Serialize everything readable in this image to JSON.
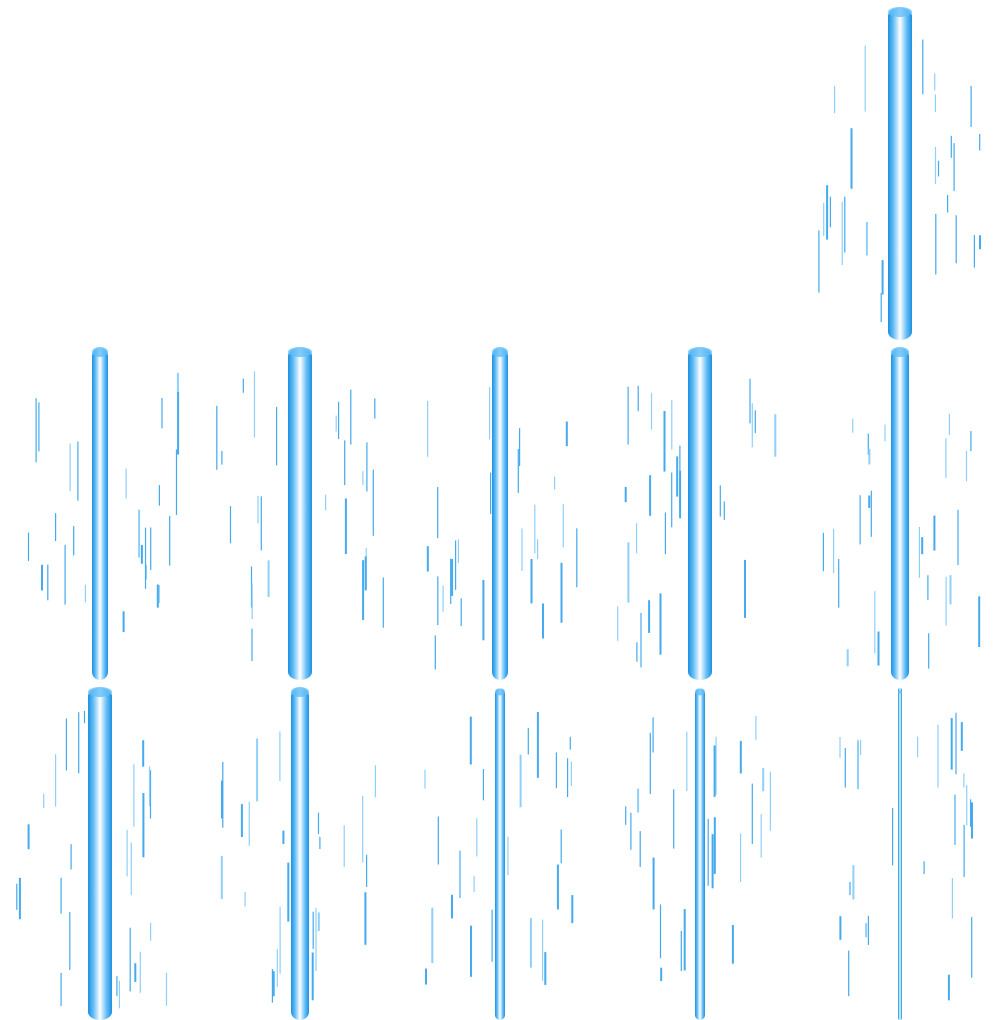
{
  "sprite_sheet": {
    "columns": 5,
    "rows": 3,
    "frames": [
      {
        "index": 0,
        "empty": true
      },
      {
        "index": 1,
        "empty": true
      },
      {
        "index": 2,
        "empty": true
      },
      {
        "index": 3,
        "empty": true
      },
      {
        "index": 4,
        "empty": false,
        "beam_width": 24,
        "seed": 11
      },
      {
        "index": 5,
        "empty": false,
        "beam_width": 16,
        "seed": 23
      },
      {
        "index": 6,
        "empty": false,
        "beam_width": 24,
        "seed": 37
      },
      {
        "index": 7,
        "empty": false,
        "beam_width": 16,
        "seed": 41
      },
      {
        "index": 8,
        "empty": false,
        "beam_width": 24,
        "seed": 53
      },
      {
        "index": 9,
        "empty": false,
        "beam_width": 18,
        "seed": 67
      },
      {
        "index": 10,
        "empty": false,
        "beam_width": 24,
        "seed": 71
      },
      {
        "index": 11,
        "empty": false,
        "beam_width": 18,
        "seed": 83
      },
      {
        "index": 12,
        "empty": false,
        "beam_width": 10,
        "seed": 97
      },
      {
        "index": 13,
        "empty": false,
        "beam_width": 10,
        "seed": 101
      },
      {
        "index": 14,
        "empty": false,
        "beam_width": 4,
        "seed": 113
      }
    ],
    "colors": {
      "background": "#ffffff",
      "beam_edge": "#1e8fe0",
      "beam_mid": "#62bdf6",
      "beam_core": "#ffffff",
      "streak": "#45aaee",
      "streak_light": "#8fd0fa"
    }
  }
}
